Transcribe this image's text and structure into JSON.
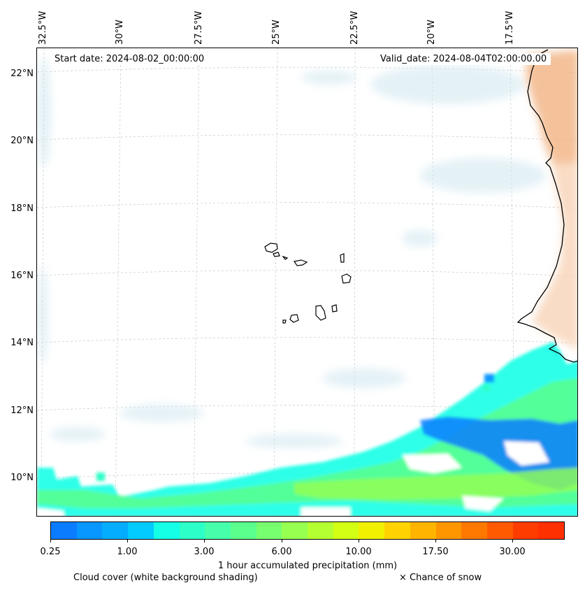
{
  "map": {
    "start_date": "Start date: 2024-08-02_00:00:00",
    "valid_date": "Valid_date: 2024-08-04T02:00:00.00",
    "lon_labels": [
      "32.5°W",
      "30°W",
      "27.5°W",
      "25°W",
      "22.5°W",
      "20°W",
      "17.5°W"
    ],
    "lat_labels": [
      "22°N",
      "20°N",
      "18°N",
      "16°N",
      "14°N",
      "12°N",
      "10°N"
    ],
    "coastline_color": "#000000",
    "gridline_color": "#c8c8c8"
  },
  "colorbar": {
    "colors": [
      "#0a7dff",
      "#0896ff",
      "#05adff",
      "#02cbff",
      "#14ffe6",
      "#2dffc8",
      "#46ffaa",
      "#5aff8c",
      "#78ff6e",
      "#96ff50",
      "#b4ff32",
      "#d2ff14",
      "#f0f000",
      "#ffd200",
      "#ffb400",
      "#ff9600",
      "#ff7800",
      "#ff5a00",
      "#ff3c00",
      "#ff3000"
    ],
    "tick_labels": [
      "0.25",
      "1.00",
      "3.00",
      "6.00",
      "10.00",
      "17.50",
      "30.00"
    ],
    "title": "1 hour accumulated precipitation (mm)"
  },
  "legend": {
    "cloud_cover": "Cloud cover (white background shading)",
    "snow": "× Chance of snow"
  }
}
